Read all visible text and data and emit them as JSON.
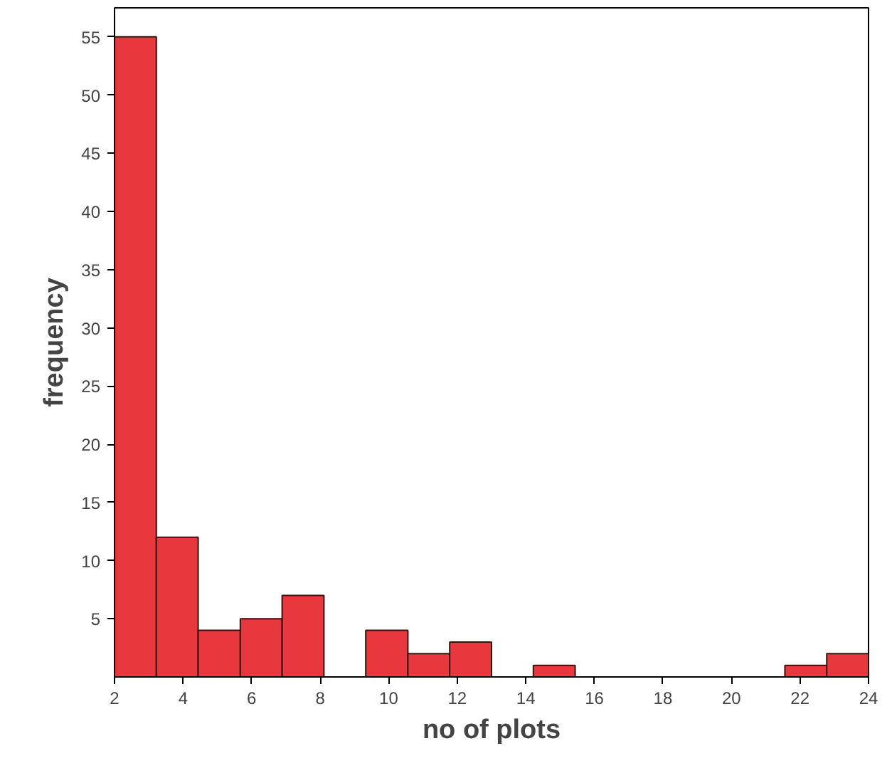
{
  "chart_data": {
    "type": "histogram",
    "xlabel": "no of plots",
    "ylabel": "frequency",
    "bins": [
      2,
      3.22,
      4.44,
      5.67,
      6.89,
      8.11,
      9.33,
      10.56,
      11.78,
      13,
      14.22,
      15.44,
      16.67,
      17.89,
      19.11,
      20.33,
      21.56,
      22.78,
      24
    ],
    "values": [
      55,
      12,
      4,
      5,
      7,
      0,
      4,
      2,
      3,
      0,
      1,
      0,
      0,
      0,
      0,
      0,
      1,
      2
    ],
    "color": "#e8383d",
    "xlim": [
      2,
      24
    ],
    "xticks": [
      2,
      4,
      6,
      8,
      10,
      12,
      14,
      16,
      18,
      20,
      22,
      24
    ],
    "ylim": [
      0,
      57.5
    ],
    "yticks": [
      5,
      10,
      15,
      20,
      25,
      30,
      35,
      40,
      45,
      50,
      55
    ],
    "grid": false
  }
}
